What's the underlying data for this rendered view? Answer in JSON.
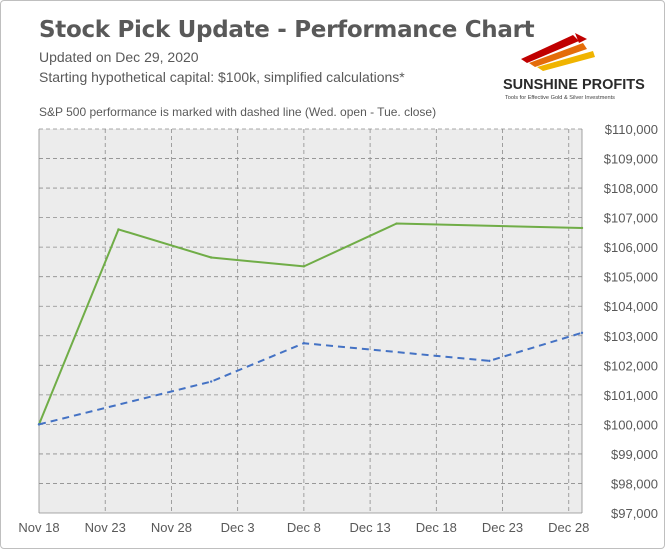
{
  "header": {
    "title": "Stock Pick Update - Performance Chart",
    "updated": "Updated on Dec 29, 2020",
    "capital": "Starting hypothetical capital: $100k, simplified calculations*",
    "note": "S&P 500 performance is marked with dashed line (Wed. open - Tue. close)"
  },
  "logo": {
    "name": "SUNSHINE PROFITS",
    "tagline": "Tools for Effective Gold & Silver Investments"
  },
  "colors": {
    "portfolio_line": "#70ad47",
    "sp500_line": "#4472c4",
    "plot_background": "#ececec",
    "grid": "#8c8c8c"
  },
  "chart_data": {
    "type": "line",
    "x_ticks": [
      "Nov 18",
      "Nov 23",
      "Nov 28",
      "Dec 3",
      "Dec 8",
      "Dec 13",
      "Dec 18",
      "Dec 23",
      "Dec 28"
    ],
    "y_ticks": [
      "$97,000",
      "$98,000",
      "$99,000",
      "$100,000",
      "$101,000",
      "$102,000",
      "$103,000",
      "$104,000",
      "$105,000",
      "$106,000",
      "$107,000",
      "$108,000",
      "$109,000",
      "$110,000"
    ],
    "ylim": [
      97000,
      110000
    ],
    "xlim": [
      "2020-11-18",
      "2020-12-29"
    ],
    "grid": true,
    "series": [
      {
        "style": "solid",
        "points": [
          {
            "x": "2020-11-18",
            "y": 100000
          },
          {
            "x": "2020-11-24",
            "y": 106600
          },
          {
            "x": "2020-12-01",
            "y": 105650
          },
          {
            "x": "2020-12-08",
            "y": 105350
          },
          {
            "x": "2020-12-15",
            "y": 106800
          },
          {
            "x": "2020-12-29",
            "y": 106650
          }
        ]
      },
      {
        "style": "dashed",
        "points": [
          {
            "x": "2020-11-18",
            "y": 100000
          },
          {
            "x": "2020-12-01",
            "y": 101450
          },
          {
            "x": "2020-12-08",
            "y": 102750
          },
          {
            "x": "2020-12-22",
            "y": 102150
          },
          {
            "x": "2020-12-29",
            "y": 103100
          }
        ]
      }
    ]
  }
}
